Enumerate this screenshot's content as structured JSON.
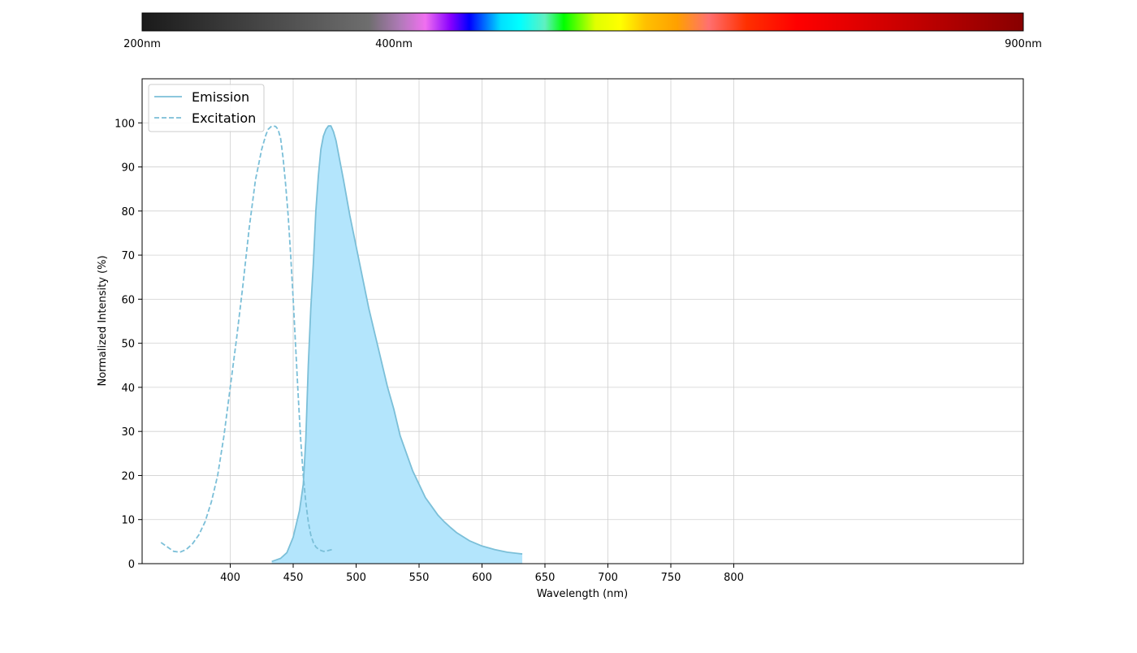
{
  "spectrum_bar": {
    "labels": [
      {
        "text": "200nm",
        "nm": 200
      },
      {
        "text": "400nm",
        "nm": 400
      },
      {
        "text": "900nm",
        "nm": 900
      }
    ],
    "range_nm": [
      200,
      900
    ],
    "stops": [
      {
        "nm": 200,
        "color": "#1a1a1a"
      },
      {
        "nm": 380,
        "color": "#6e6e6e"
      },
      {
        "nm": 405,
        "color": "#b07ab8"
      },
      {
        "nm": 425,
        "color": "#f070f0"
      },
      {
        "nm": 445,
        "color": "#8800ff"
      },
      {
        "nm": 460,
        "color": "#0000ff"
      },
      {
        "nm": 485,
        "color": "#00e0ff"
      },
      {
        "nm": 500,
        "color": "#00ffff"
      },
      {
        "nm": 520,
        "color": "#60f0c0"
      },
      {
        "nm": 535,
        "color": "#00ff00"
      },
      {
        "nm": 560,
        "color": "#e0ff00"
      },
      {
        "nm": 580,
        "color": "#ffff00"
      },
      {
        "nm": 600,
        "color": "#ffc000"
      },
      {
        "nm": 625,
        "color": "#ffa000"
      },
      {
        "nm": 650,
        "color": "#ff7070"
      },
      {
        "nm": 680,
        "color": "#ff3000"
      },
      {
        "nm": 720,
        "color": "#ff0000"
      },
      {
        "nm": 800,
        "color": "#cc0000"
      },
      {
        "nm": 900,
        "color": "#880000"
      }
    ]
  },
  "chart_data": {
    "type": "line",
    "xlabel": "Wavelength (nm)",
    "ylabel": "Normalized Intensity (%)",
    "xlim": [
      330,
      1030
    ],
    "ylim": [
      0,
      110
    ],
    "xticks": [
      400,
      450,
      500,
      550,
      600,
      650,
      700,
      750,
      800
    ],
    "yticks": [
      0,
      10,
      20,
      30,
      40,
      50,
      60,
      70,
      80,
      90,
      100
    ],
    "grid": true,
    "legend_position": "top-left",
    "series": [
      {
        "name": "Emission",
        "style": "solid",
        "color": "#7bbfd8",
        "fill": "#b3e5fc",
        "x": [
          433,
          440,
          445,
          450,
          455,
          458,
          460,
          462,
          464,
          466,
          468,
          470,
          472,
          474,
          476,
          478,
          480,
          482,
          484,
          486,
          488,
          490,
          495,
          500,
          505,
          510,
          515,
          520,
          525,
          530,
          535,
          540,
          545,
          550,
          555,
          560,
          565,
          570,
          575,
          580,
          590,
          600,
          610,
          620,
          632
        ],
        "y": [
          0.5,
          1.2,
          2.5,
          6,
          12,
          18,
          28,
          45,
          58,
          68,
          80,
          88,
          94,
          97,
          98.5,
          99.3,
          99.3,
          98,
          96,
          93,
          90,
          87,
          79,
          72,
          65,
          58,
          52,
          46,
          40,
          35,
          29,
          25,
          21,
          18,
          15,
          13,
          11,
          9.5,
          8.2,
          7,
          5.2,
          4,
          3.2,
          2.6,
          2.2
        ]
      },
      {
        "name": "Excitation",
        "style": "dashed",
        "color": "#7bbfd8",
        "x": [
          345,
          350,
          355,
          360,
          365,
          370,
          375,
          380,
          385,
          390,
          395,
          400,
          405,
          410,
          415,
          420,
          425,
          428,
          430,
          433,
          436,
          438,
          440,
          442,
          444,
          446,
          448,
          450,
          452,
          454,
          456,
          458,
          460,
          462,
          464,
          466,
          468,
          470,
          472,
          474,
          476,
          478,
          481
        ],
        "y": [
          4.8,
          3.8,
          2.8,
          2.6,
          3.2,
          4.5,
          6.5,
          9.5,
          14,
          20,
          29,
          40,
          51,
          63,
          76,
          87,
          94,
          97,
          98.5,
          99.3,
          99.2,
          98.5,
          96.5,
          92,
          86,
          79,
          70,
          60,
          49,
          38,
          28,
          20,
          14,
          9.5,
          6.5,
          4.8,
          3.8,
          3.3,
          3.0,
          2.8,
          2.8,
          3.0,
          3.2
        ]
      }
    ]
  }
}
